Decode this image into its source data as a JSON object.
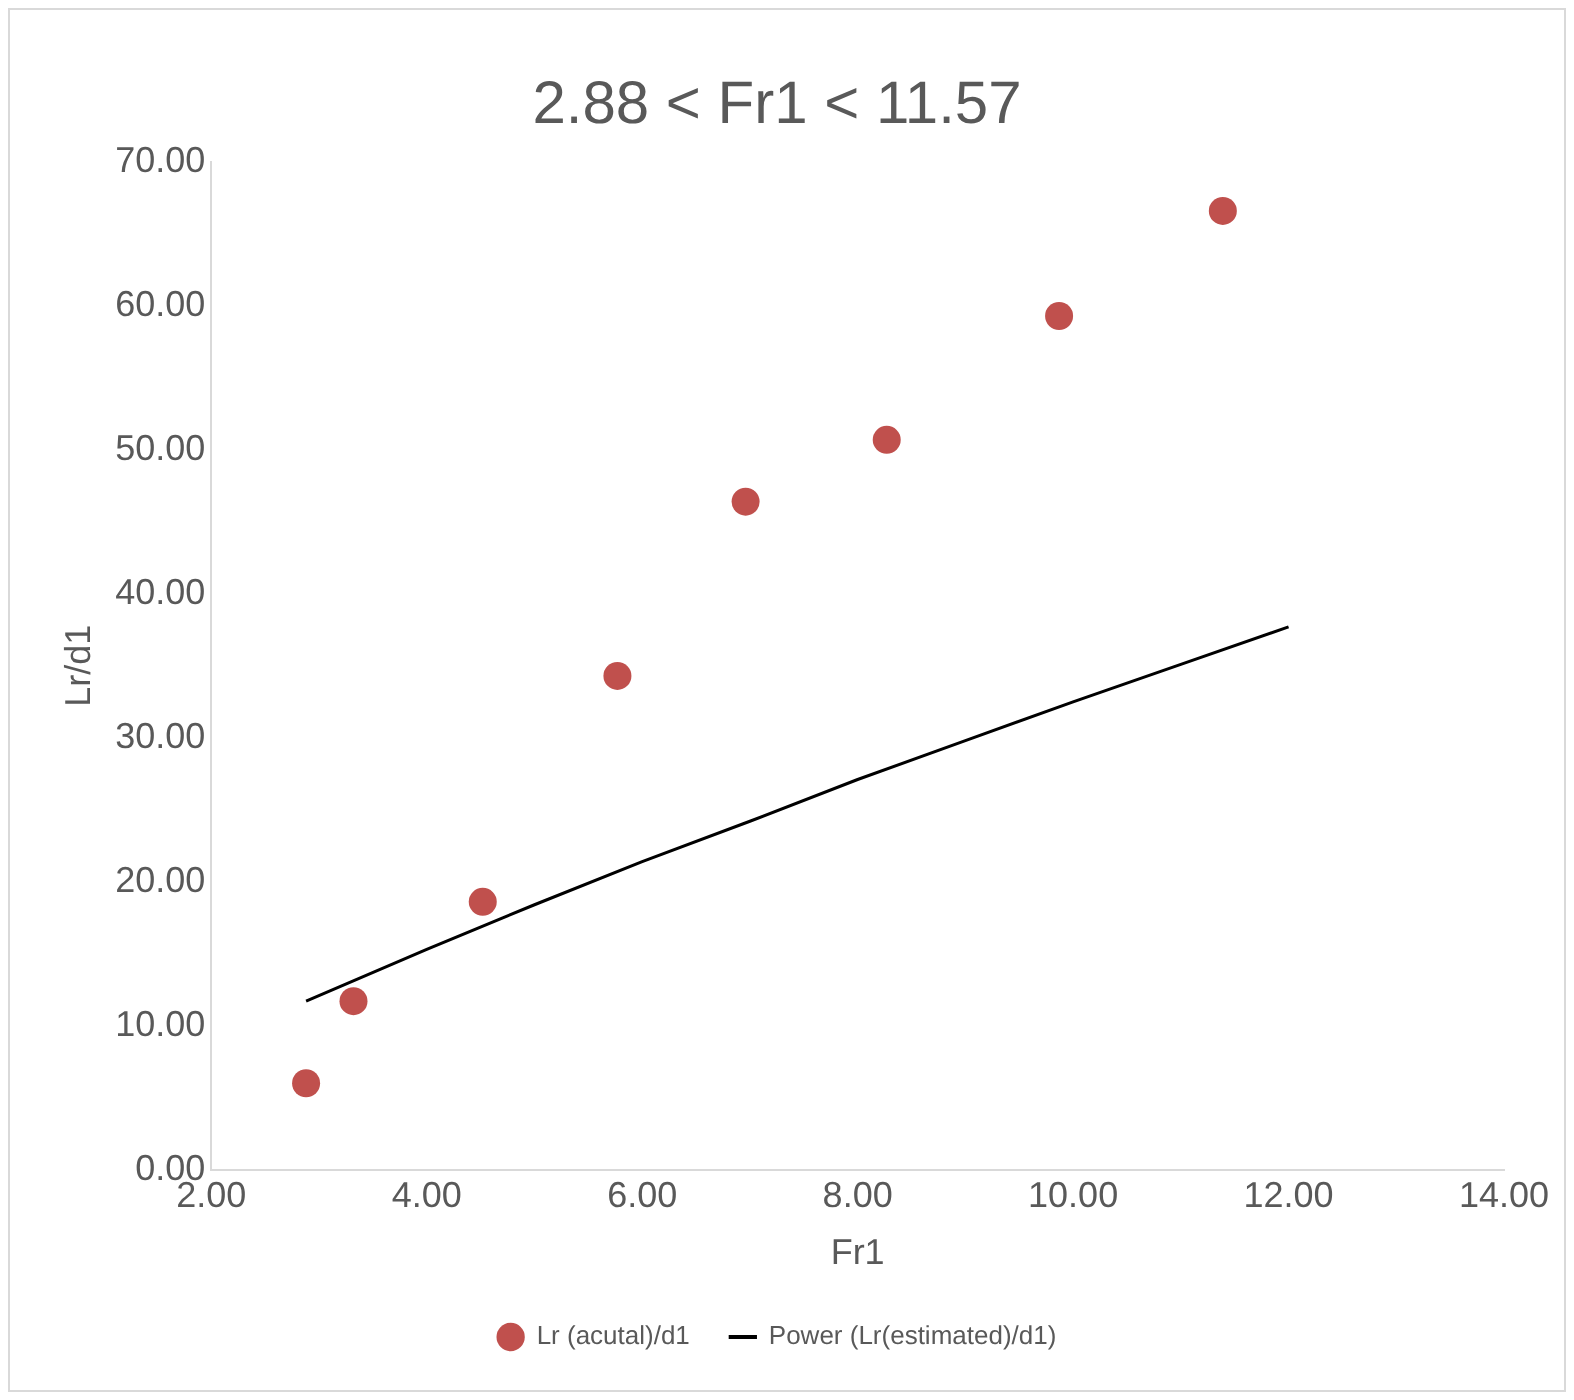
{
  "chart_data": {
    "type": "scatter",
    "title": "2.88 < Fr1 < 11.57",
    "xlabel": "Fr1",
    "ylabel": "Lr/d1",
    "xlim": [
      2,
      14
    ],
    "ylim": [
      0,
      70
    ],
    "xticks": [
      {
        "value": 2,
        "label": "2.00"
      },
      {
        "value": 4,
        "label": "4.00"
      },
      {
        "value": 6,
        "label": "6.00"
      },
      {
        "value": 8,
        "label": "8.00"
      },
      {
        "value": 10,
        "label": "10.00"
      },
      {
        "value": 12,
        "label": "12.00"
      },
      {
        "value": 14,
        "label": "14.00"
      }
    ],
    "yticks": [
      {
        "value": 0,
        "label": "0.00"
      },
      {
        "value": 10,
        "label": "10.00"
      },
      {
        "value": 20,
        "label": "20.00"
      },
      {
        "value": 30,
        "label": "30.00"
      },
      {
        "value": 40,
        "label": "40.00"
      },
      {
        "value": 50,
        "label": "50.00"
      },
      {
        "value": 60,
        "label": "60.00"
      },
      {
        "value": 70,
        "label": "70.00"
      }
    ],
    "grid": false,
    "legend": "bottom",
    "series": [
      {
        "name": "Lr (acutal)/d1",
        "type": "scatter",
        "marker": "circle",
        "color": "#c0504d",
        "x": [
          2.88,
          3.32,
          4.52,
          5.77,
          6.96,
          8.27,
          9.87,
          11.39
        ],
        "values": [
          6.0,
          11.7,
          18.6,
          34.3,
          46.4,
          50.7,
          59.3,
          66.6
        ]
      },
      {
        "name": "Power (Lr(estimated)/d1)",
        "type": "line",
        "marker": "none",
        "line_style": "solid",
        "color": "#000000",
        "x": [
          2.88,
          4,
          5,
          6,
          7,
          8,
          9,
          10,
          11,
          12
        ],
        "values": [
          11.7,
          15.3,
          18.4,
          21.4,
          24.2,
          27.1,
          29.8,
          32.5,
          35.1,
          37.7
        ]
      }
    ]
  }
}
